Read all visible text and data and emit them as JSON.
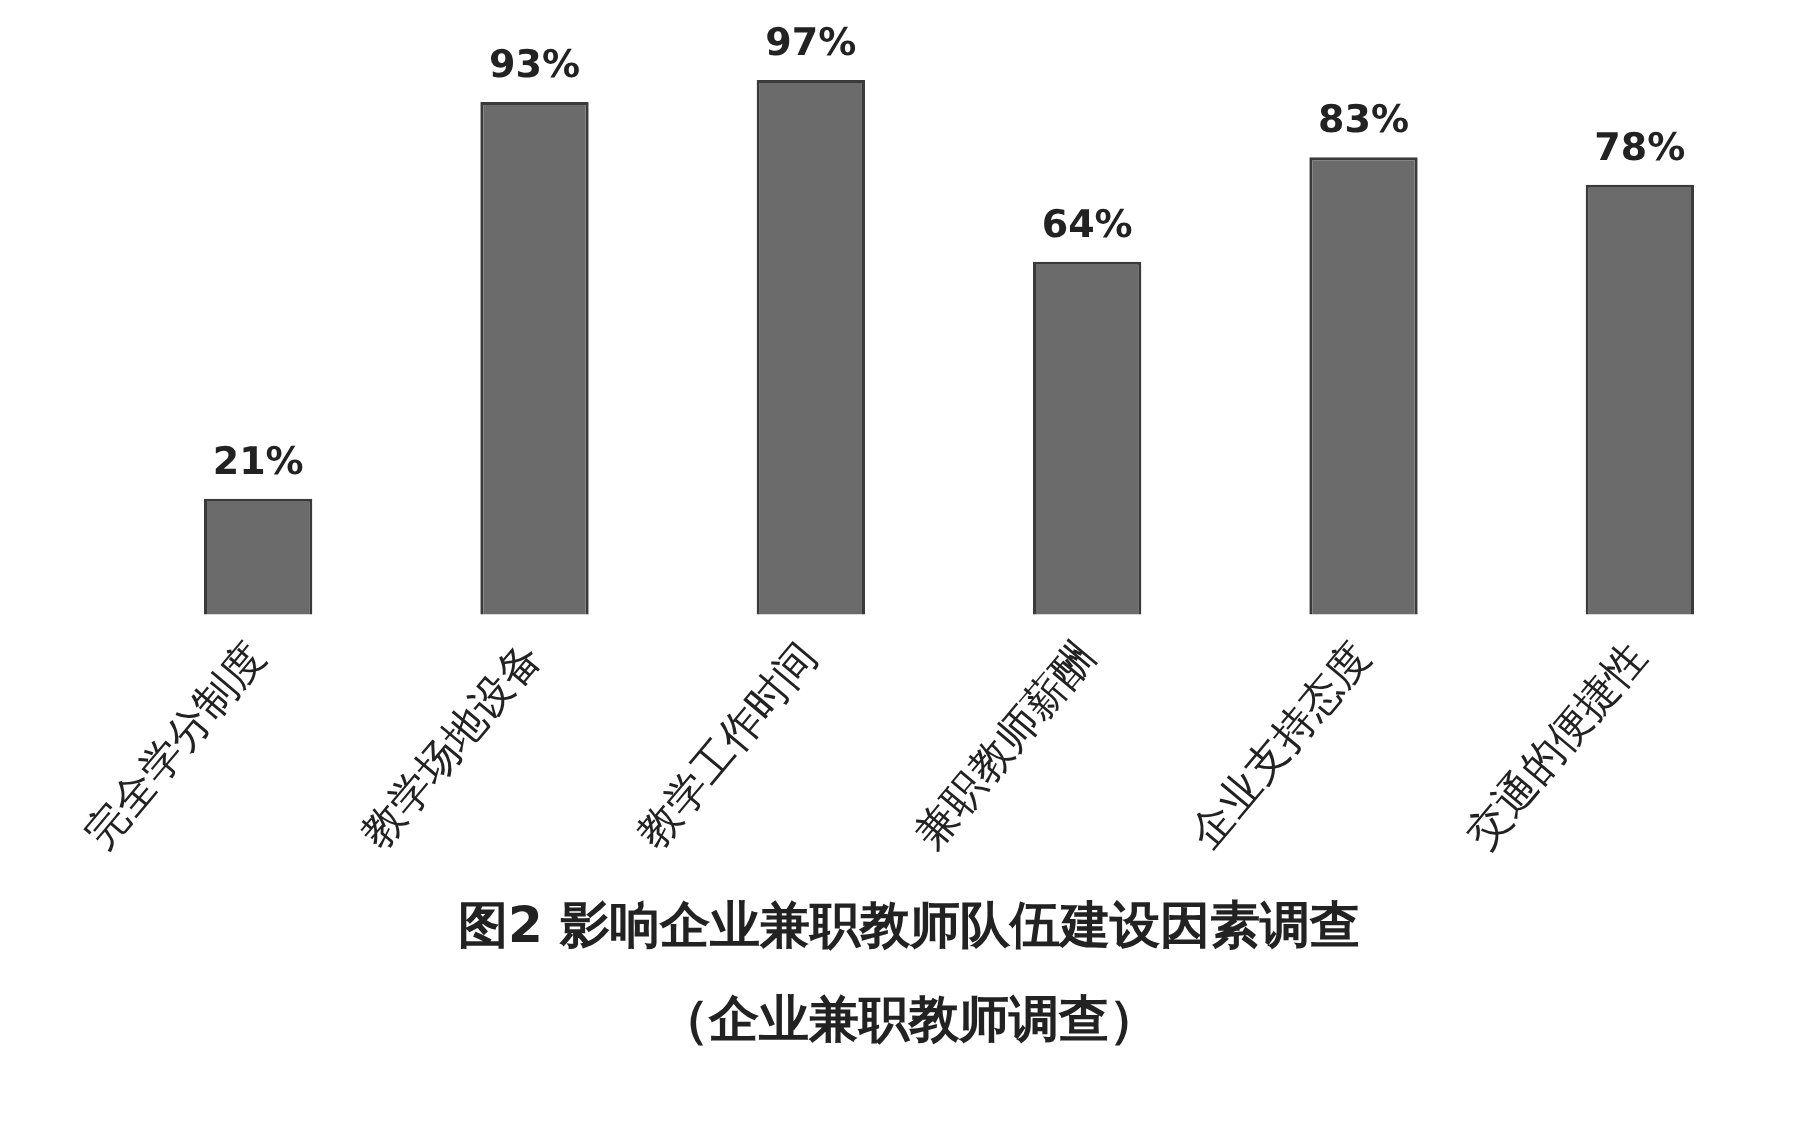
{
  "chart_data": {
    "type": "bar",
    "title": "图2 影响企业兼职教师队伍建设因素调查",
    "subtitle": "（企业兼职教师调查）",
    "categories": [
      "完全学分制度",
      "教学场地设备",
      "教学工作时间",
      "兼职教师薪酬",
      "企业支持态度",
      "交通的便捷性"
    ],
    "values": [
      21,
      93,
      97,
      64,
      83,
      78
    ],
    "value_labels": [
      "21%",
      "93%",
      "97%",
      "64%",
      "83%",
      "78%"
    ],
    "color": "#6b6b6b",
    "legend": false,
    "grid": false
  }
}
